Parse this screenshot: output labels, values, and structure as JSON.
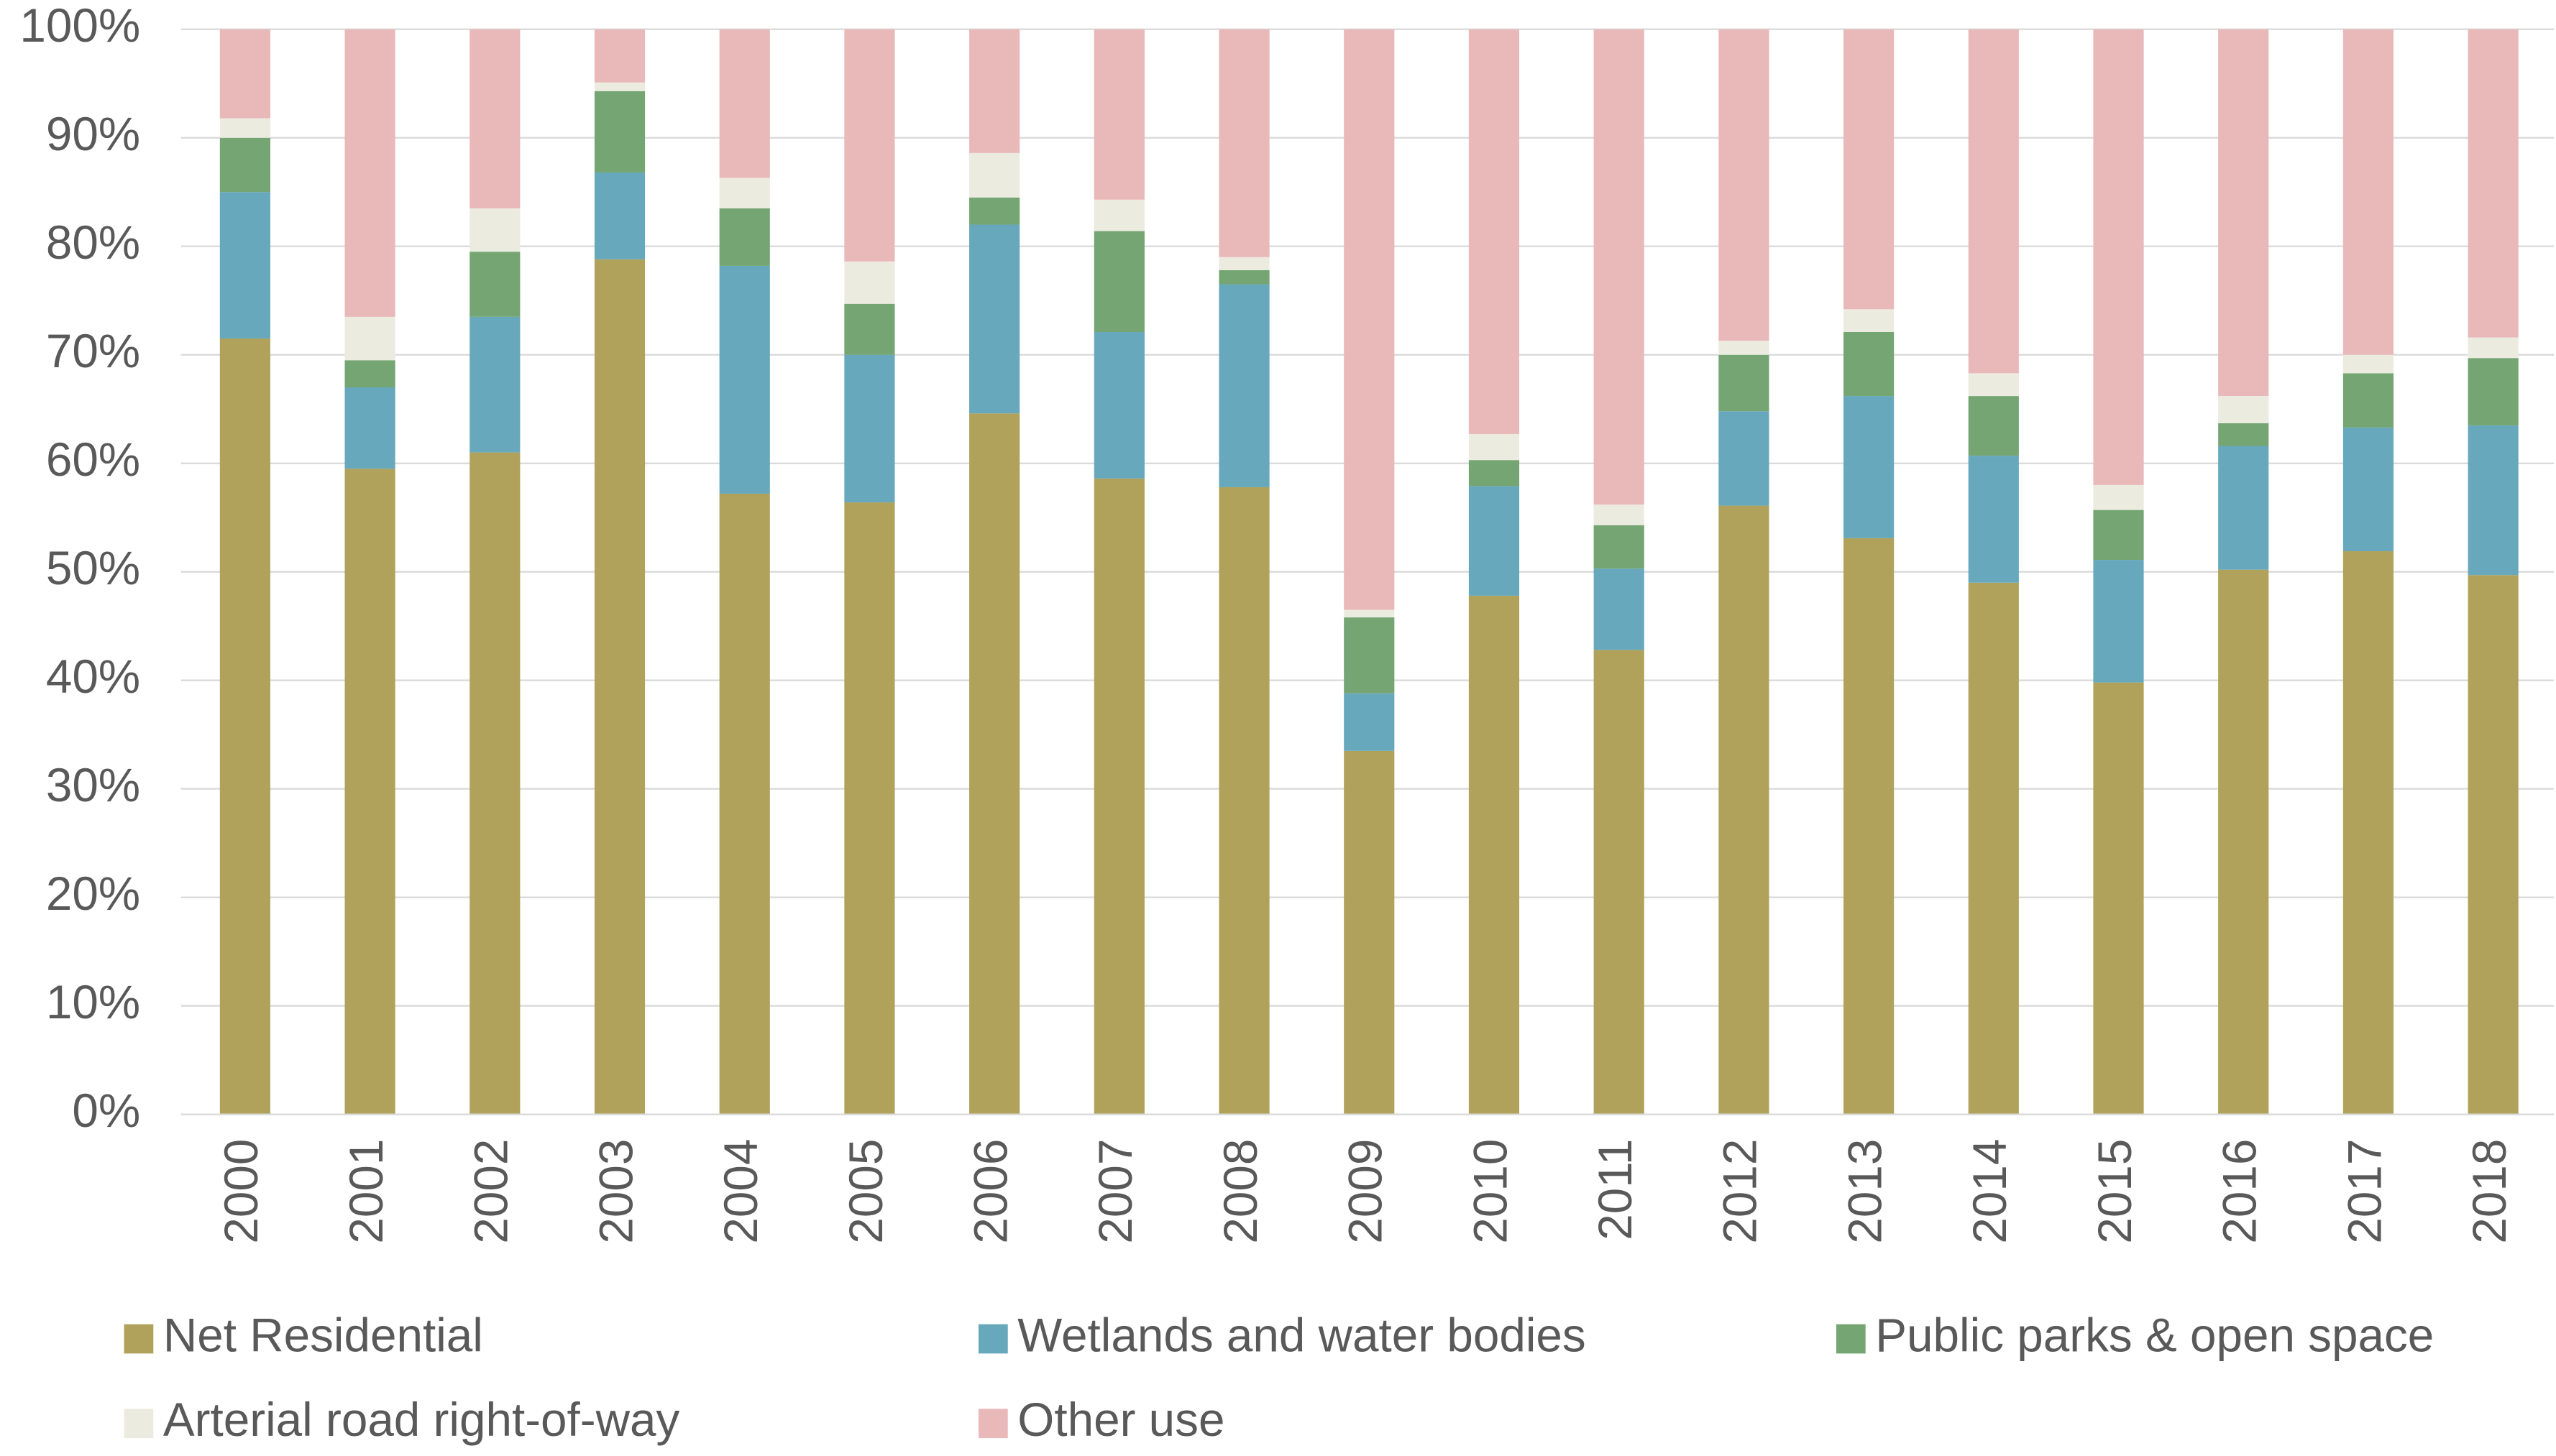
{
  "chart_data": {
    "type": "stacked_bar",
    "categories": [
      "2000",
      "2001",
      "2002",
      "2003",
      "2004",
      "2005",
      "2006",
      "2007",
      "2008",
      "2009",
      "2010",
      "2011",
      "2012",
      "2013",
      "2014",
      "2015",
      "2016",
      "2017",
      "2018"
    ],
    "series": [
      {
        "name": "Net Residential",
        "color": "#b0a25a",
        "values": [
          71.5,
          59.5,
          61,
          78.8,
          57.2,
          56.4,
          64.6,
          58.6,
          57.8,
          33.5,
          47.8,
          42.8,
          56.1,
          53.1,
          49,
          39.8,
          50.2,
          51.9,
          49.7
        ]
      },
      {
        "name": "Wetlands and water bodies",
        "color": "#67a8bd",
        "values": [
          13.5,
          7.5,
          12.5,
          8,
          21,
          13.6,
          17.4,
          13.5,
          18.7,
          5.3,
          10.1,
          7.5,
          8.7,
          13.1,
          11.7,
          11.3,
          11.4,
          11.4,
          13.8
        ]
      },
      {
        "name": "Public parks & open space",
        "color": "#74a572",
        "values": [
          5,
          2.5,
          6,
          7.5,
          5.3,
          4.7,
          2.5,
          9.3,
          1.3,
          7,
          2.4,
          4,
          5.2,
          5.9,
          5.5,
          4.6,
          2.1,
          5,
          6.2
        ]
      },
      {
        "name": "Arterial road right-of-way",
        "color": "#ecebe0",
        "values": [
          1.8,
          4,
          4,
          0.8,
          2.8,
          3.9,
          4.1,
          2.9,
          1.2,
          0.7,
          2.4,
          1.9,
          1.3,
          2.1,
          2.1,
          2.3,
          2.5,
          1.7,
          1.9
        ]
      },
      {
        "name": "Other use",
        "color": "#e9b8b9",
        "values": [
          8.2,
          26.5,
          16.5,
          4.9,
          13.7,
          21.4,
          11.4,
          15.7,
          21,
          53.5,
          37.3,
          43.8,
          28.7,
          25.8,
          31.7,
          42,
          33.8,
          30,
          28.4
        ]
      }
    ],
    "ylim": [
      0,
      100
    ],
    "yticks": [
      {
        "value": 0,
        "label": "0%"
      },
      {
        "value": 10,
        "label": "10%"
      },
      {
        "value": 20,
        "label": "20%"
      },
      {
        "value": 30,
        "label": "30%"
      },
      {
        "value": 40,
        "label": "40%"
      },
      {
        "value": 50,
        "label": "50%"
      },
      {
        "value": 60,
        "label": "60%"
      },
      {
        "value": 70,
        "label": "70%"
      },
      {
        "value": 80,
        "label": "80%"
      },
      {
        "value": 90,
        "label": "90%"
      },
      {
        "value": 100,
        "label": "100%"
      }
    ],
    "grid": true
  }
}
